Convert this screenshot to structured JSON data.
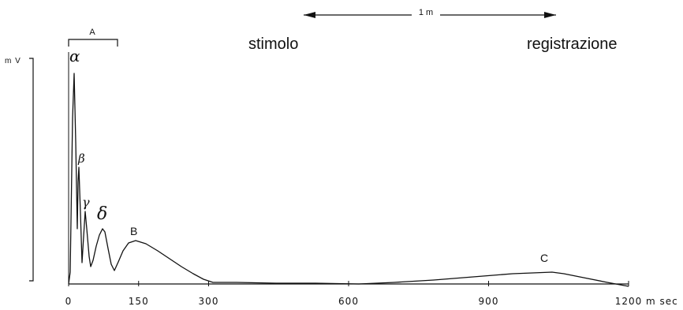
{
  "labels": {
    "bracket_a": "A",
    "mv": "m V",
    "distance": "1 m",
    "stimulus": "stimolo",
    "recording": "registrazione",
    "alpha": "α",
    "beta": "β",
    "gamma": "γ",
    "delta": "δ",
    "peak_b": "B",
    "peak_c": "C",
    "x_unit": "m sec"
  },
  "chart_data": {
    "type": "line",
    "x_ticks": [
      0,
      150,
      300,
      600,
      900,
      1200
    ],
    "xlim": [
      0,
      1200
    ],
    "ylabel": "m V",
    "xlabel": "m sec",
    "grid": false
  }
}
